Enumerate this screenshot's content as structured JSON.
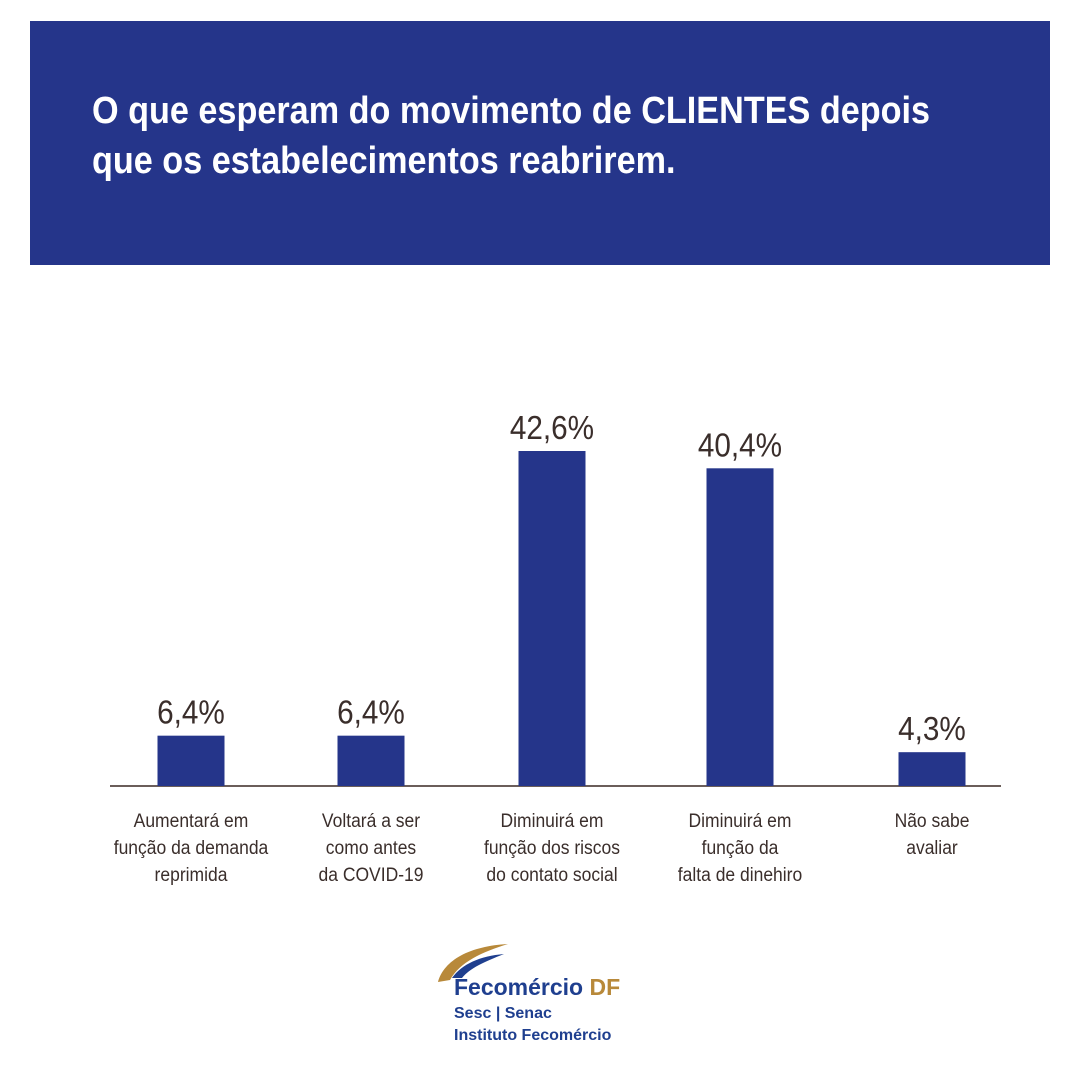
{
  "header": {
    "title_line1": "O que esperam do movimento de CLIENTES depois",
    "title_line2": "que os estabelecimentos reabrirem."
  },
  "colors": {
    "bar": "#25358a",
    "banner": "#25358a",
    "axis": "#6b5e5a",
    "value_text": "#3a2e2b"
  },
  "chart_data": {
    "type": "bar",
    "title": "O que esperam do movimento de CLIENTES depois que os estabelecimentos reabrirem.",
    "xlabel": "",
    "ylabel": "",
    "ylim": [
      0,
      50
    ],
    "grid": false,
    "categories": [
      [
        "Aumentará em",
        "função da demanda",
        "reprimida"
      ],
      [
        "Voltará a ser",
        "como antes",
        "da COVID-19"
      ],
      [
        "Diminuirá em",
        "função dos riscos",
        "do contato social"
      ],
      [
        "Diminuirá em",
        "função da",
        "falta de dinehiro"
      ],
      [
        "Não sabe",
        "avaliar"
      ]
    ],
    "values": [
      6.4,
      6.4,
      42.6,
      40.4,
      4.3
    ],
    "value_labels": [
      "6,4%",
      "6,4%",
      "42,6%",
      "40,4%",
      "4,3%"
    ]
  },
  "logo": {
    "icon": "fecomercio-wing-icon",
    "name_part1": "Fecomércio",
    "name_part2": "DF",
    "line2": "Sesc | Senac",
    "line3": "Instituto Fecomércio"
  }
}
